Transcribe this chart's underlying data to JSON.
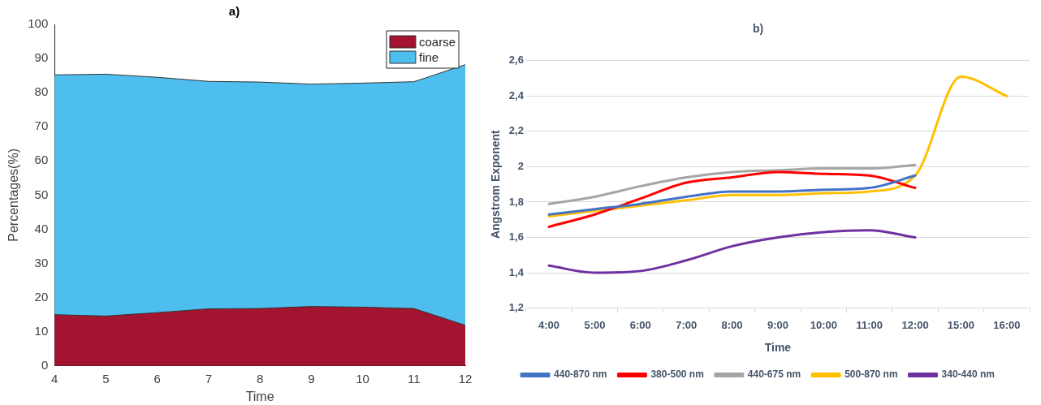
{
  "chart_data": [
    {
      "type": "area",
      "title": "a)",
      "xlabel": "Time",
      "ylabel": "Percentages(%)",
      "stacked": true,
      "x": [
        4,
        5,
        6,
        7,
        8,
        9,
        10,
        11,
        12
      ],
      "series": [
        {
          "name": "coarse",
          "color": "#a2142f",
          "values": [
            15,
            14.6,
            15.6,
            16.7,
            16.8,
            17.4,
            17.2,
            16.8,
            11.9
          ]
        },
        {
          "name": "fine",
          "color": "#4dbeee",
          "values": [
            70.2,
            70.8,
            68.9,
            66.6,
            66.3,
            65.1,
            65.6,
            66.4,
            76.3
          ]
        }
      ],
      "xlim": [
        4,
        12
      ],
      "xticks": [
        4,
        5,
        6,
        7,
        8,
        9,
        10,
        11,
        12
      ],
      "ylim": [
        0,
        100
      ],
      "yticks": [
        0,
        10,
        20,
        30,
        40,
        50,
        60,
        70,
        80,
        90,
        100
      ],
      "grid": false,
      "legend": "top right"
    },
    {
      "type": "line",
      "title": "b)",
      "xlabel": "Time",
      "ylabel": "Angstrom Exponent",
      "categories": [
        "4:00",
        "5:00",
        "6:00",
        "7:00",
        "8:00",
        "9:00",
        "10:00",
        "11:00",
        "12:00",
        "15:00",
        "16:00"
      ],
      "series": [
        {
          "name": "440-870 nm",
          "color": "#4472c4",
          "values": [
            1.73,
            1.76,
            1.79,
            1.83,
            1.86,
            1.86,
            1.87,
            1.88,
            1.95,
            null,
            null
          ]
        },
        {
          "name": "380-500 nm",
          "color": "#ff0000",
          "values": [
            1.66,
            1.73,
            1.82,
            1.91,
            1.94,
            1.97,
            1.96,
            1.95,
            1.88,
            null,
            null
          ]
        },
        {
          "name": "440-675 nm",
          "color": "#a5a5a5",
          "values": [
            1.79,
            1.83,
            1.89,
            1.94,
            1.97,
            1.98,
            1.99,
            1.99,
            2.01,
            null,
            null
          ]
        },
        {
          "name": "500-870 nm",
          "color": "#ffc000",
          "values": [
            1.72,
            1.75,
            1.78,
            1.81,
            1.84,
            1.84,
            1.85,
            1.86,
            1.95,
            2.51,
            2.4
          ]
        },
        {
          "name": "340-440 nm",
          "color": "#7030a0",
          "values": [
            1.44,
            1.4,
            1.41,
            1.47,
            1.55,
            1.6,
            1.63,
            1.64,
            1.6,
            null,
            null
          ]
        }
      ],
      "ylim": [
        1.2,
        2.6
      ],
      "yticks": [
        {
          "value": 1.2,
          "label": "1,2"
        },
        {
          "value": 1.4,
          "label": "1,4"
        },
        {
          "value": 1.6,
          "label": "1,6"
        },
        {
          "value": 1.8,
          "label": "1,8"
        },
        2,
        {
          "value": 2.2,
          "label": "2,2"
        },
        {
          "value": 2.4,
          "label": "2,4"
        },
        {
          "value": 2.6,
          "label": "2,6"
        }
      ],
      "grid": "y",
      "legend": "bottom"
    }
  ]
}
